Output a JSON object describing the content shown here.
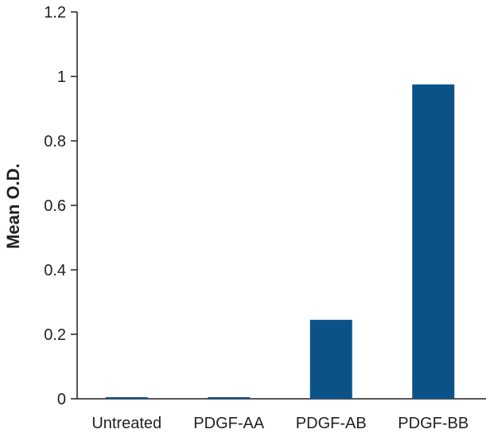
{
  "chart_data": {
    "type": "bar",
    "title": "",
    "xlabel": "",
    "ylabel": "Mean O.D.",
    "categories": [
      "Untreated",
      "PDGF-AA",
      "PDGF-AB",
      "PDGF-BB"
    ],
    "values": [
      0.005,
      0.005,
      0.245,
      0.975
    ],
    "ylim": [
      0,
      1.2
    ],
    "yticks": [
      0,
      0.2,
      0.4,
      0.6,
      0.8,
      1,
      1.2
    ],
    "ytick_labels": [
      "0",
      "0.2",
      "0.4",
      "0.6",
      "0.8",
      "1",
      "1.2"
    ],
    "grid": false,
    "bar_color": "#0b5289"
  }
}
